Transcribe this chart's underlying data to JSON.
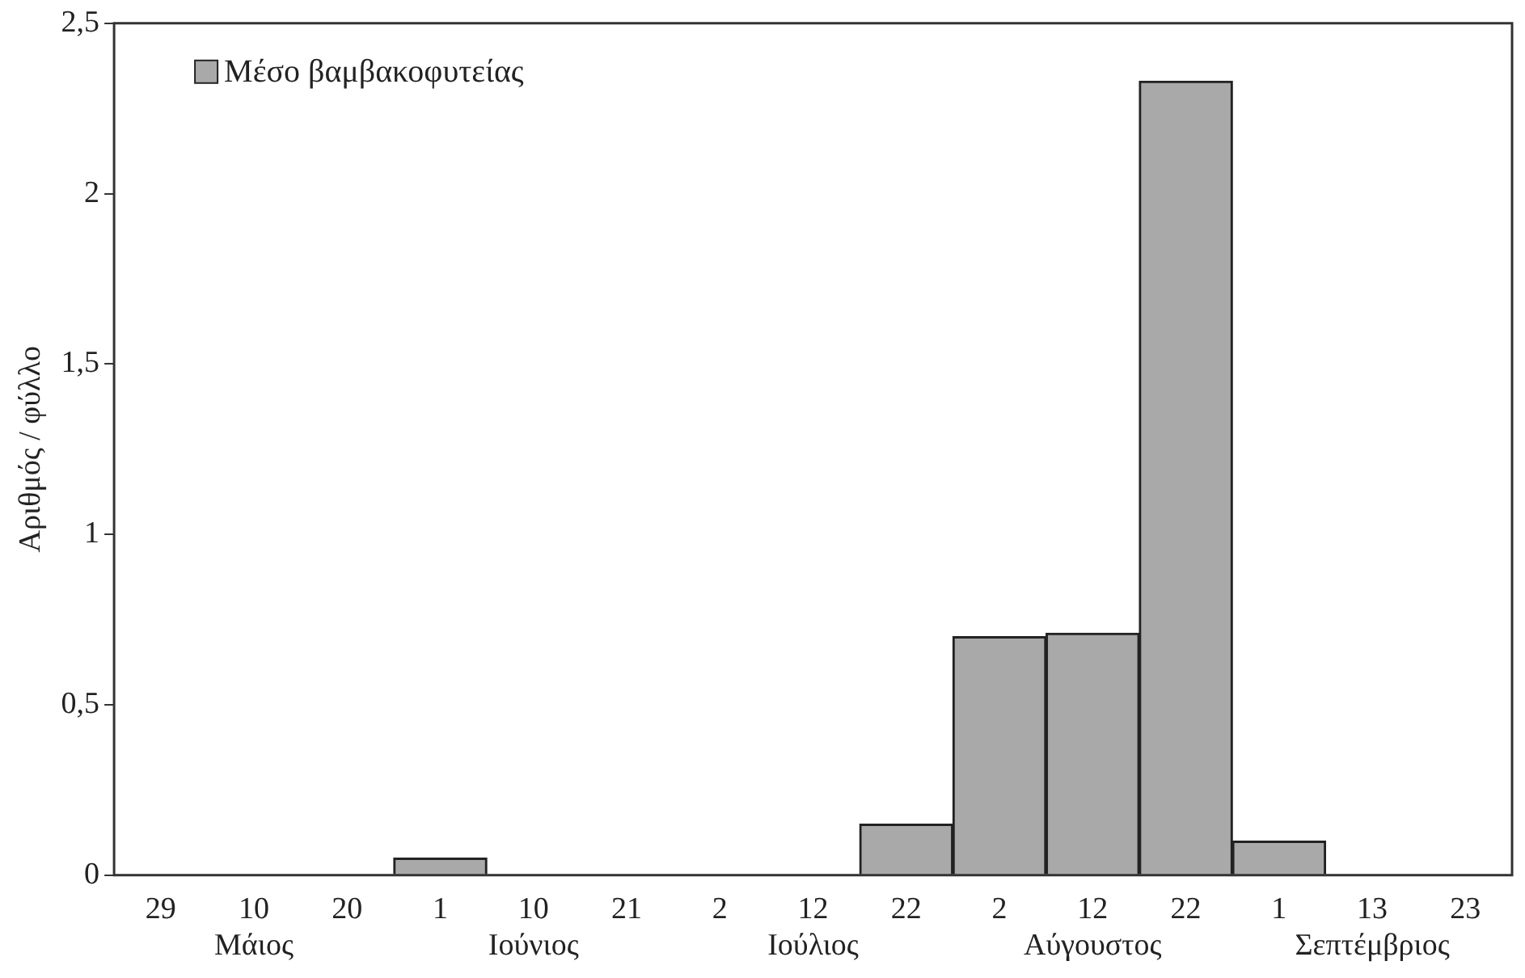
{
  "chart_data": {
    "type": "bar",
    "ylabel": "Αριθμός / φύλλο",
    "categories": [
      "29",
      "10\nΜάιος",
      "20",
      "1",
      "10\nΙούνιος",
      "21",
      "2",
      "12\nΙούλιος",
      "22",
      "2",
      "12\nΑύγουστος",
      "22",
      "1",
      "13\nΣεπτέμβριος",
      "23"
    ],
    "series": [
      {
        "name": "Μέσο βαμβακοφυτείας",
        "color": "#a9a9a9",
        "values": [
          0,
          0,
          0,
          0.05,
          0,
          0,
          0,
          0,
          0.15,
          0.7,
          0.71,
          2.33,
          0.1,
          0,
          0
        ]
      }
    ],
    "ylim": [
      0,
      2.5
    ],
    "yticks": [
      {
        "value": 0,
        "label": "0"
      },
      {
        "value": 0.5,
        "label": "0,5"
      },
      {
        "value": 1,
        "label": "1"
      },
      {
        "value": 1.5,
        "label": "1,5"
      },
      {
        "value": 2,
        "label": "2"
      },
      {
        "value": 2.5,
        "label": "2,5"
      }
    ],
    "grid": false,
    "legend": "top left"
  }
}
